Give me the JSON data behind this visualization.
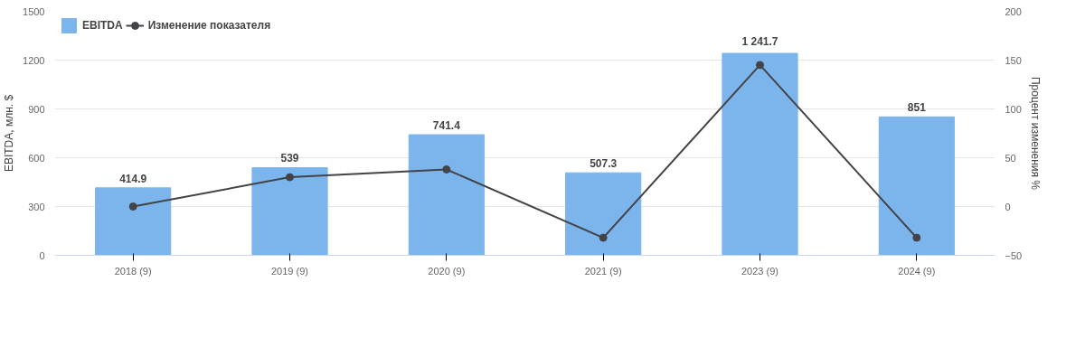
{
  "chart_data": {
    "type": "bar",
    "categories": [
      "2018 (9)",
      "2019 (9)",
      "2020 (9)",
      "2021 (9)",
      "2023 (9)",
      "2024 (9)"
    ],
    "ylabel": "EBITDA, млн. $",
    "y2label": "Процент изменения %",
    "ylim": [
      0,
      1500
    ],
    "yticks": [
      0,
      300,
      600,
      900,
      1200,
      1500
    ],
    "y2lim": [
      -50,
      200
    ],
    "y2ticks": [
      -50,
      0,
      50,
      100,
      150,
      200
    ],
    "grid": "y",
    "legend": "top left",
    "marker": "circle",
    "series": [
      {
        "name": "EBITDA",
        "color": "#7cb5ec",
        "values": [
          414.9,
          539,
          741.4,
          507.3,
          1241.7,
          851
        ],
        "value_labels": [
          "414.9",
          "539",
          "741.4",
          "507.3",
          "1 241.7",
          "851"
        ]
      },
      {
        "name": "Изменение показателя",
        "type": "line",
        "axis": "y2",
        "color": "#434348",
        "values": [
          0,
          30,
          38,
          -32,
          145,
          -32
        ]
      }
    ]
  }
}
